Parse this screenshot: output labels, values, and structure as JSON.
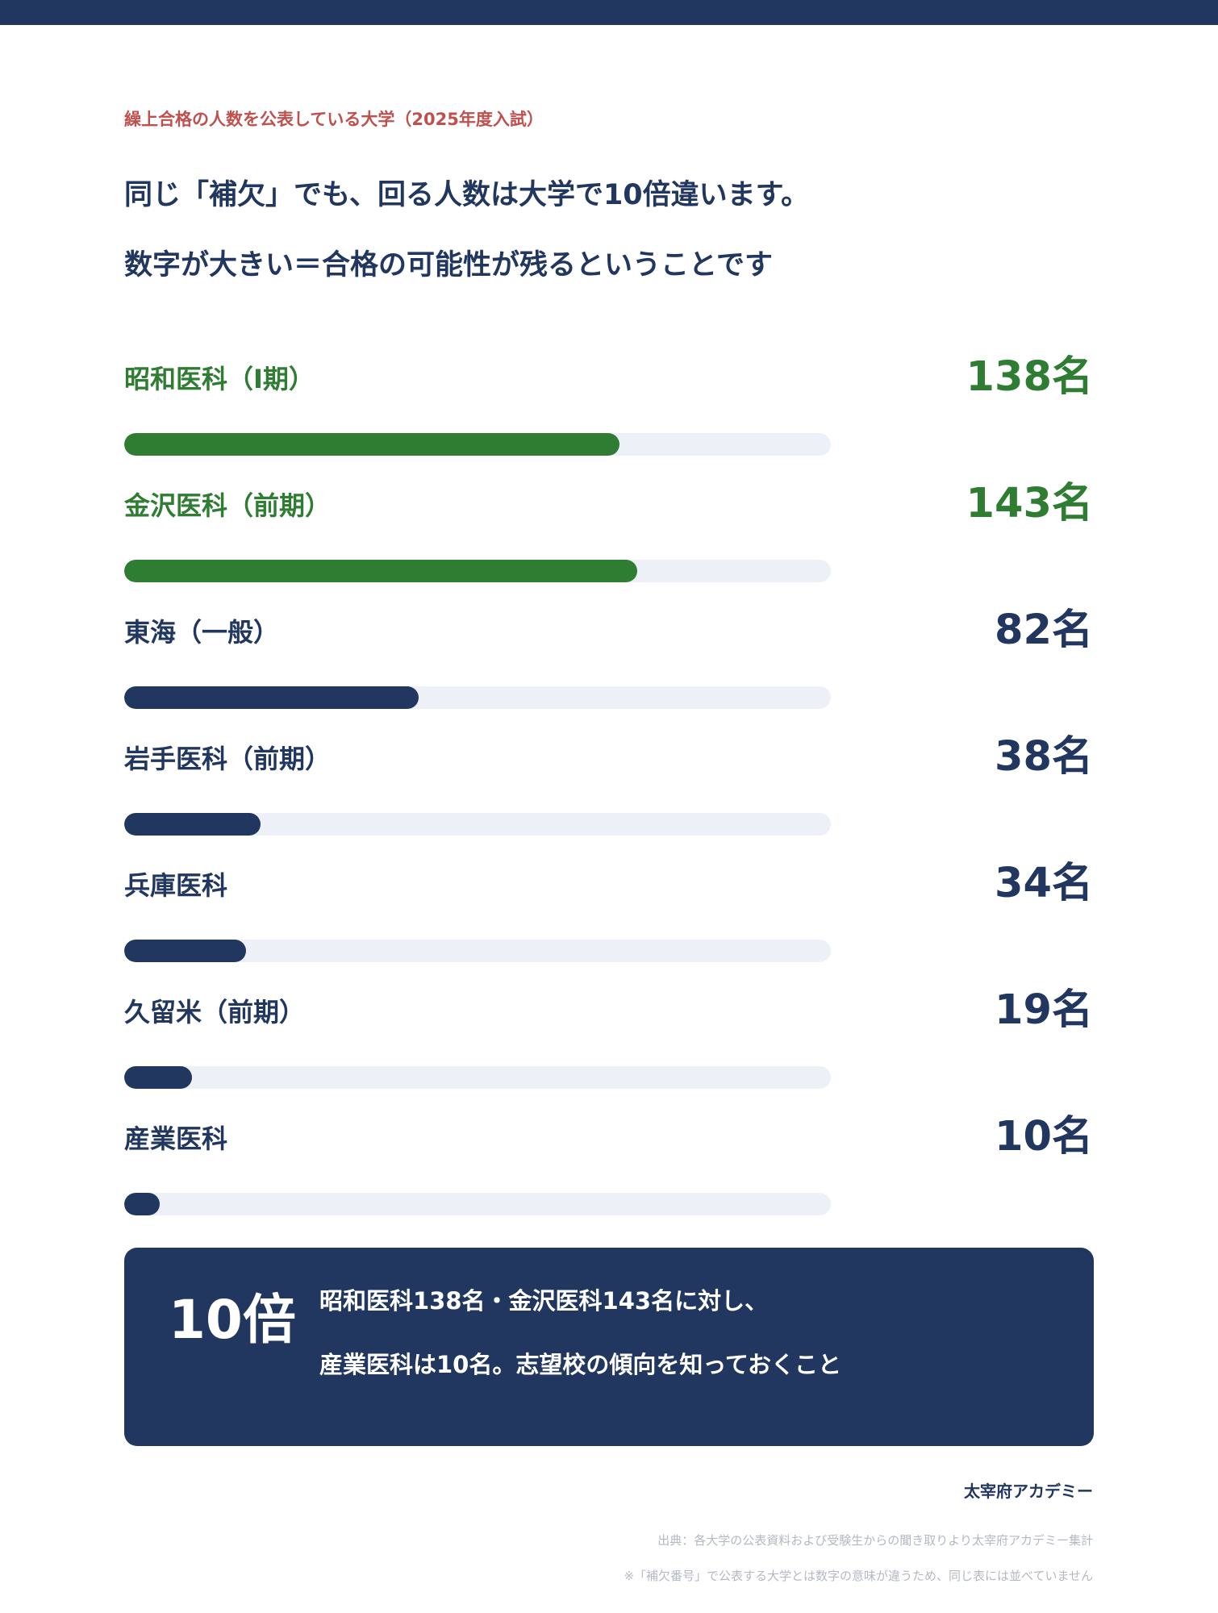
{
  "eyebrow": "繰上合格の人数を公表している大学（2025年度入試）",
  "headline": {
    "line1": "同じ「補欠」でも、回る人数は大学で10倍違います。",
    "line2": "数字が大きい＝合格の可能性が残るということです"
  },
  "chart_data": {
    "type": "bar",
    "orientation": "horizontal",
    "unit": "名",
    "xlim": [
      0,
      197
    ],
    "categories": [
      "昭和医科（Ⅰ期）",
      "金沢医科（前期）",
      "東海（一般）",
      "岩手医科（前期）",
      "兵庫医科",
      "久留米（前期）",
      "産業医科"
    ],
    "values": [
      138,
      143,
      82,
      38,
      34,
      19,
      10
    ],
    "value_labels": [
      "138名",
      "143名",
      "82名",
      "38名",
      "34名",
      "19名",
      "10名"
    ],
    "colors": [
      "#2e7d32",
      "#2e7d32",
      "#22375f",
      "#22375f",
      "#22375f",
      "#22375f",
      "#22375f"
    ],
    "track_color": "#edf0f6",
    "grid": false
  },
  "callout": {
    "big": "10倍",
    "line1": "昭和医科138名・金沢医科143名に対し、",
    "line2": "産業医科は10名。志望校の傾向を知っておくこと"
  },
  "brand": "太宰府アカデミー",
  "notes": {
    "source": "出典：各大学の公表資料および受験生からの聞き取りより太宰府アカデミー集計",
    "caveat": "※「補欠番号」で公表する大学とは数字の意味が違うため、同じ表には並べていません"
  },
  "colors": {
    "navy": "#22375f",
    "green": "#2e7d32",
    "accent_red": "#c0504d",
    "muted": "#b3b8c2"
  }
}
